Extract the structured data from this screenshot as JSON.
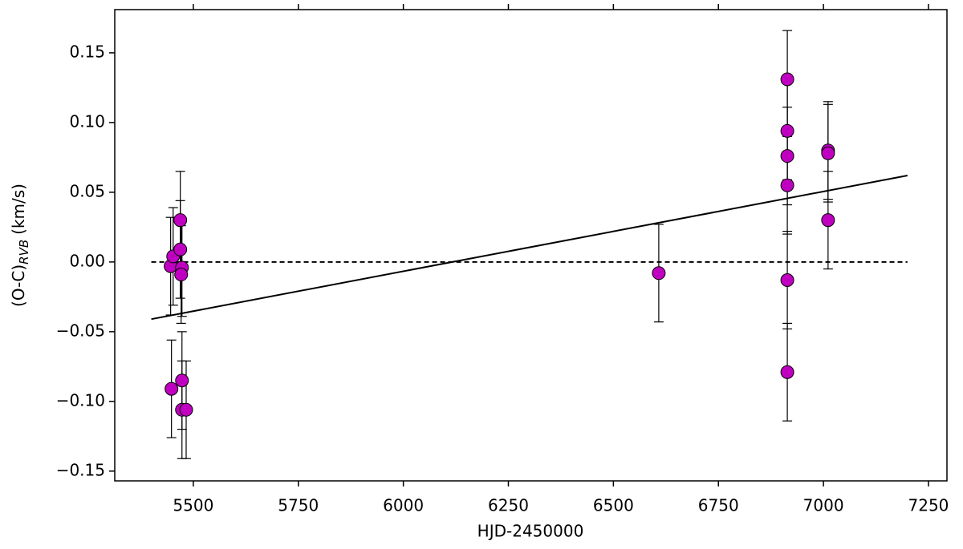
{
  "chart_data": {
    "type": "scatter",
    "xlabel": "HJD-2450000",
    "ylabel": "(O-C)",
    "ylabel_subscript": "RVB",
    "ylabel_unit": "(km/s)",
    "xlim": [
      5313,
      7294
    ],
    "ylim": [
      -0.157,
      0.181
    ],
    "xticks": [
      5500,
      5750,
      6000,
      6250,
      6500,
      6750,
      7000,
      7250
    ],
    "yticks": [
      {
        "value": -0.15,
        "label": "−0.15"
      },
      {
        "value": -0.1,
        "label": "−0.10"
      },
      {
        "value": -0.05,
        "label": "−0.05"
      },
      {
        "value": 0,
        "label": "0.00"
      },
      0.05,
      {
        "value": 0.1,
        "label": "0.10"
      },
      0.15
    ],
    "series": [
      {
        "color": "#c000c0",
        "x": [
          5446,
          5452,
          5469,
          5469,
          5473,
          5471,
          5448,
          5473,
          5473,
          5483,
          6608,
          6914,
          6914,
          6914,
          6914,
          6914,
          6914,
          7011,
          7011,
          7011
        ],
        "values": [
          -0.003,
          0.004,
          0.03,
          0.009,
          -0.004,
          -0.009,
          -0.091,
          -0.085,
          -0.106,
          -0.106,
          -0.008,
          0.131,
          0.094,
          0.076,
          0.055,
          -0.013,
          -0.079,
          0.08,
          0.078,
          0.03
        ],
        "errors": [
          0.035,
          0.035,
          0.035,
          0.035,
          0.035,
          0.035,
          0.035,
          0.035,
          0.035,
          0.035,
          0.035,
          0.035,
          0.035,
          0.035,
          0.035,
          0.035,
          0.035,
          0.035,
          0.035,
          0.035
        ]
      }
    ],
    "fit": {
      "x": [
        5400,
        7200
      ],
      "values": [
        -0.041,
        0.062
      ]
    },
    "reference_line": {
      "x": [
        5400,
        7200
      ],
      "values": [
        0,
        0
      ]
    }
  }
}
